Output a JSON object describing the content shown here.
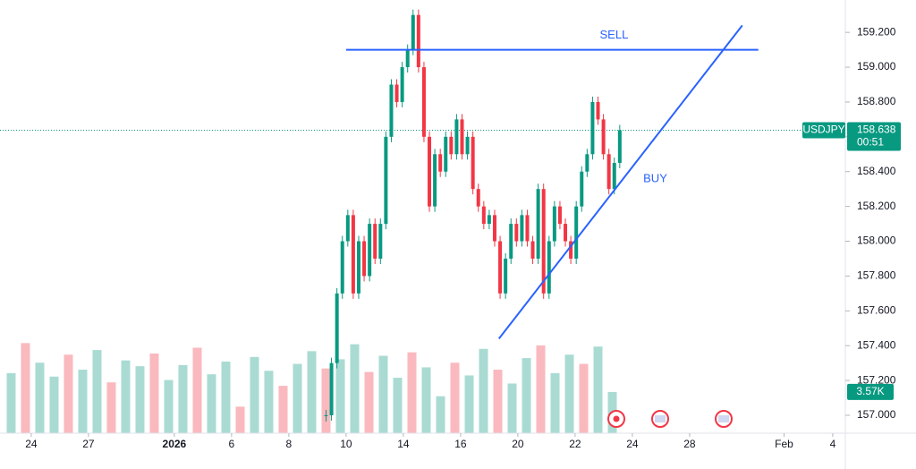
{
  "chart_data": {
    "type": "candlestick",
    "symbol": "USDJPY",
    "last_price": 158.638,
    "countdown": "00:51",
    "up_color": "#089981",
    "down_color": "#f23645",
    "line_color": "#2962ff",
    "x": [
      10.3,
      10.49,
      10.68,
      10.87,
      11.06,
      11.25,
      11.44,
      11.63,
      11.82,
      12.01,
      12.2,
      12.39,
      12.58,
      12.77,
      12.96,
      13.15,
      13.34,
      13.53,
      13.72,
      13.91,
      14.1,
      14.29,
      14.48,
      14.67,
      14.86,
      15.05,
      15.24,
      15.43,
      15.62,
      15.81,
      16,
      16.19,
      16.38,
      16.57,
      16.76,
      16.95,
      17.14,
      17.33,
      17.52,
      17.71,
      17.9,
      18.09,
      18.28,
      18.47,
      18.66,
      18.85,
      19.04,
      19.23,
      19.42,
      19.61,
      19.8,
      19.99,
      20.18,
      20.37,
      20.56
    ],
    "values": [
      157.0,
      157.3,
      157.7,
      158.0,
      158.15,
      157.7,
      158.0,
      157.8,
      158.1,
      157.9,
      158.1,
      158.6,
      158.9,
      158.8,
      159.0,
      159.1,
      159.3,
      159.0,
      158.6,
      158.2,
      158.5,
      158.4,
      158.6,
      158.5,
      158.7,
      158.5,
      158.6,
      158.3,
      158.2,
      158.1,
      158.15,
      158.0,
      157.7,
      157.9,
      158.1,
      158.0,
      158.15,
      158.0,
      157.9,
      158.3,
      157.7,
      158.0,
      158.2,
      158.1,
      158.0,
      157.9,
      158.2,
      158.4,
      158.5,
      158.8,
      158.7,
      158.5,
      158.3,
      158.45,
      158.638
    ],
    "volume": {
      "x": [
        -0.7,
        -0.2,
        0.3,
        0.8,
        1.3,
        1.8,
        2.3,
        2.8,
        3.3,
        3.8,
        4.3,
        4.8,
        5.3,
        5.8,
        6.3,
        6.8,
        7.3,
        7.8,
        8.3,
        8.8,
        9.3,
        9.8,
        10.3,
        10.8,
        11.3,
        11.8,
        12.3,
        12.8,
        13.3,
        13.8,
        14.3,
        14.8,
        15.3,
        15.8,
        16.3,
        16.8,
        17.3,
        17.8,
        18.3,
        18.8,
        19.3,
        19.8,
        20.3
      ],
      "values": [
        5.2,
        7.8,
        6.1,
        4.9,
        6.8,
        5.5,
        7.2,
        4.4,
        6.3,
        5.8,
        6.9,
        4.6,
        5.9,
        7.4,
        5.1,
        6.2,
        2.3,
        6.6,
        5.4,
        4.1,
        6.0,
        7.1,
        5.6,
        6.4,
        7.7,
        5.3,
        6.7,
        4.8,
        7.0,
        5.7,
        3.2,
        6.1,
        5.0,
        7.3,
        5.5,
        4.3,
        6.5,
        7.6,
        5.2,
        6.8,
        6.0,
        7.5,
        3.57
      ],
      "value_labels": [
        null,
        null,
        null,
        null,
        null,
        null,
        null,
        null,
        null,
        null,
        null,
        null,
        null,
        null,
        null,
        null,
        null,
        null,
        null,
        null,
        null,
        null,
        null,
        null,
        null,
        null,
        null,
        null,
        null,
        null,
        null,
        null,
        null,
        null,
        null,
        null,
        null,
        null,
        null,
        null,
        null,
        null,
        "3.57K"
      ],
      "ylim": [
        0,
        37.5
      ]
    },
    "annotations": [
      {
        "label": "SELL",
        "x": [
          11.0,
          25.4
        ],
        "y": [
          159.1,
          159.1
        ]
      },
      {
        "label": "BUY",
        "x": [
          16.34,
          24.84
        ],
        "y": [
          157.44,
          159.24
        ]
      }
    ],
    "xlim": [
      -1.09,
      28.44
    ],
    "xticks": [
      {
        "value": 0,
        "label": "24"
      },
      {
        "value": 2,
        "label": "27"
      },
      {
        "value": 5,
        "label": "2026"
      },
      {
        "value": 7,
        "label": "6"
      },
      {
        "value": 9,
        "label": "8"
      },
      {
        "value": 11,
        "label": "10"
      },
      {
        "value": 13,
        "label": "14"
      },
      {
        "value": 15,
        "label": "16"
      },
      {
        "value": 17,
        "label": "20"
      },
      {
        "value": 19,
        "label": "22"
      },
      {
        "value": 21,
        "label": "24"
      },
      {
        "value": 23,
        "label": "28"
      },
      {
        "value": 26.3,
        "label": "Feb"
      },
      {
        "value": 28,
        "label": "4"
      }
    ],
    "ylim": [
      156.897,
      159.386
    ],
    "yticks": [
      {
        "value": 157.0,
        "label": "157.000"
      },
      {
        "value": 157.2,
        "label": "157.200"
      },
      {
        "value": 157.4,
        "label": "157.400"
      },
      {
        "value": 157.6,
        "label": "157.600"
      },
      {
        "value": 157.8,
        "label": "157.800"
      },
      {
        "value": 158.0,
        "label": "158.000"
      },
      {
        "value": 158.2,
        "label": "158.200"
      },
      {
        "value": 158.4,
        "label": "158.400"
      },
      {
        "value": 158.6,
        "label": "158.600"
      },
      {
        "value": 158.8,
        "label": "158.800"
      },
      {
        "value": 159.0,
        "label": "159.000"
      },
      {
        "value": 159.2,
        "label": "159.200"
      }
    ]
  }
}
